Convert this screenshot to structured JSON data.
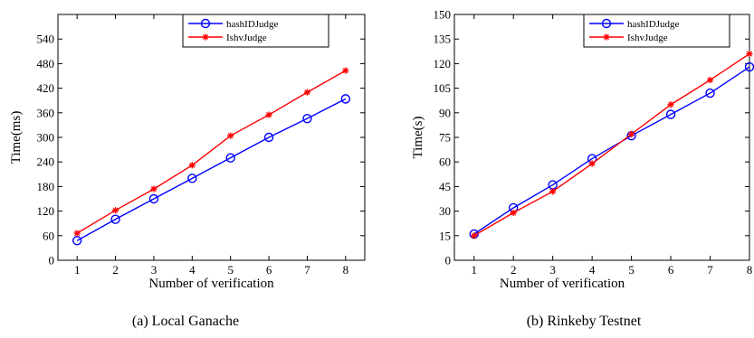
{
  "chart_data": [
    {
      "type": "line",
      "caption": "(a)  Local Ganache",
      "xlabel": "Number of verification",
      "ylabel": "Time(ms)",
      "x": [
        1,
        2,
        3,
        4,
        5,
        6,
        7,
        8
      ],
      "xlim": [
        0.5,
        8.5
      ],
      "ylim": [
        0,
        600
      ],
      "yticks": [
        0,
        60,
        120,
        180,
        240,
        300,
        360,
        420,
        480,
        540
      ],
      "grid": false,
      "legend_position": "top-right",
      "series": [
        {
          "name": "hashIDJudge",
          "color": "#0000ff",
          "marker": "circle",
          "values": [
            48,
            100,
            150,
            200,
            250,
            300,
            346,
            394
          ]
        },
        {
          "name": "IshvJudge",
          "color": "#ff0000",
          "marker": "asterisk",
          "values": [
            66,
            122,
            174,
            232,
            304,
            355,
            410,
            463
          ]
        }
      ]
    },
    {
      "type": "line",
      "caption": "(b)  Rinkeby Testnet",
      "xlabel": "Number of verification",
      "ylabel": "Time(s)",
      "x": [
        1,
        2,
        3,
        4,
        5,
        6,
        7,
        8
      ],
      "xlim": [
        0.5,
        8
      ],
      "ylim": [
        0,
        150
      ],
      "yticks": [
        0,
        15,
        30,
        45,
        60,
        75,
        90,
        105,
        120,
        135,
        150
      ],
      "grid": false,
      "legend_position": "top-right",
      "series": [
        {
          "name": "hashIDJudge",
          "color": "#0000ff",
          "marker": "circle",
          "values": [
            16,
            32,
            46,
            62,
            76,
            89,
            102,
            118
          ]
        },
        {
          "name": "IshvJudge",
          "color": "#ff0000",
          "marker": "asterisk",
          "values": [
            15,
            29,
            42,
            59,
            77,
            95,
            110,
            126
          ]
        }
      ]
    }
  ]
}
